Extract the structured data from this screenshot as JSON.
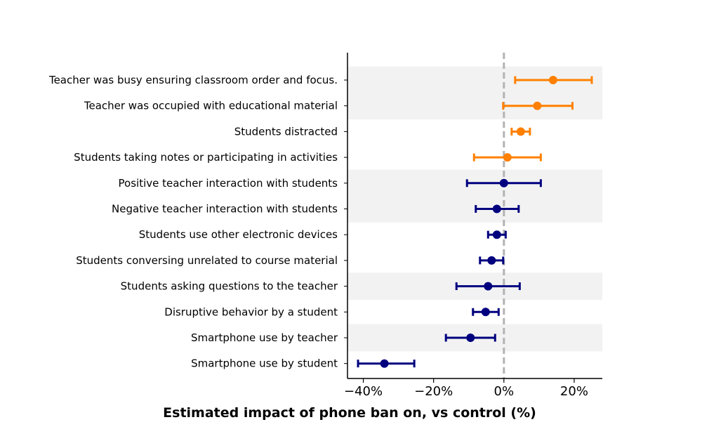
{
  "chart_data": {
    "type": "errorbar",
    "xlabel": "Estimated impact of phone ban on, vs control (%)",
    "xlim": [
      -44.5,
      28
    ],
    "xticks": [
      -40,
      -20,
      0,
      20
    ],
    "xtick_labels": [
      "−40%",
      "−20%",
      "0%",
      "20%"
    ],
    "reference_line": {
      "x": 0,
      "style": "dashed",
      "color": "#b3b3b3"
    },
    "grid": false,
    "shaded_bands": [
      {
        "from": "Teacher was busy ensuring classroom order and focus.",
        "to": "Teacher was occupied with educational material"
      },
      {
        "from": "Positive teacher interaction with students",
        "to": "Negative teacher interaction with students"
      },
      {
        "from": "Students asking questions to the teacher",
        "to": "Students asking questions to the teacher"
      },
      {
        "from": "Smartphone use by teacher",
        "to": "Smartphone use by teacher"
      }
    ],
    "band_color": "#f2f2f2",
    "colors": {
      "positive": "#ff8000",
      "negative": "#00007f"
    },
    "items": [
      {
        "label": "Teacher was busy ensuring classroom order and focus.",
        "estimate": 14.0,
        "ci": [
          3.2,
          25.0
        ],
        "color": "#ff8000"
      },
      {
        "label": "Teacher was occupied with educational material",
        "estimate": 9.5,
        "ci": [
          -0.2,
          19.5
        ],
        "color": "#ff8000"
      },
      {
        "label": "Students distracted",
        "estimate": 4.8,
        "ci": [
          2.2,
          7.4
        ],
        "color": "#ff8000"
      },
      {
        "label": "Students taking notes or participating in activities",
        "estimate": 1.0,
        "ci": [
          -8.5,
          10.5
        ],
        "color": "#ff8000"
      },
      {
        "label": "Positive teacher interaction with students",
        "estimate": 0.0,
        "ci": [
          -10.5,
          10.5
        ],
        "color": "#00007f"
      },
      {
        "label": "Negative teacher interaction with students",
        "estimate": -2.0,
        "ci": [
          -8.0,
          4.2
        ],
        "color": "#00007f"
      },
      {
        "label": "Students use other electronic devices",
        "estimate": -2.0,
        "ci": [
          -4.5,
          0.5
        ],
        "color": "#00007f"
      },
      {
        "label": "Students conversing unrelated to course material",
        "estimate": -3.5,
        "ci": [
          -6.8,
          -0.2
        ],
        "color": "#00007f"
      },
      {
        "label": "Students asking questions to the teacher",
        "estimate": -4.5,
        "ci": [
          -13.5,
          4.5
        ],
        "color": "#00007f"
      },
      {
        "label": "Disruptive behavior by a student",
        "estimate": -5.2,
        "ci": [
          -8.8,
          -1.5
        ],
        "color": "#00007f"
      },
      {
        "label": "Smartphone use by teacher",
        "estimate": -9.5,
        "ci": [
          -16.5,
          -2.5
        ],
        "color": "#00007f"
      },
      {
        "label": "Smartphone use by student",
        "estimate": -34.0,
        "ci": [
          -41.5,
          -25.5
        ],
        "color": "#00007f"
      }
    ]
  }
}
